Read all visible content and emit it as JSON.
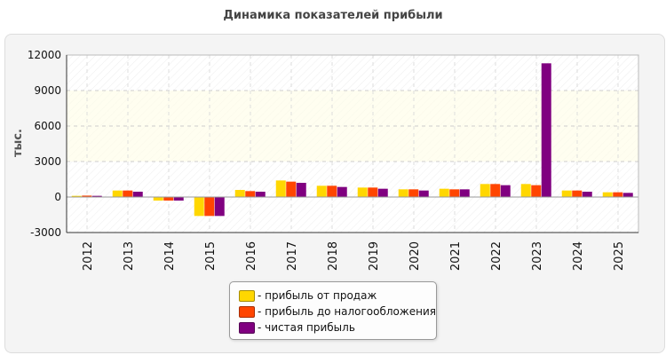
{
  "chart_data": {
    "type": "bar",
    "title": "Динамика показателей прибыли",
    "ylabel": "тыс.",
    "xlabel": "",
    "ylim": [
      -3000,
      12000
    ],
    "yticks": [
      "12000",
      "9000",
      "6000",
      "3000",
      "0",
      "-3000"
    ],
    "categories": [
      "2012",
      "2013",
      "2014",
      "2015",
      "2016",
      "2017",
      "2018",
      "2019",
      "2020",
      "2021",
      "2022",
      "2023",
      "2024",
      "2025"
    ],
    "series": [
      {
        "name": "- прибыль от продаж",
        "color": "#ffd700",
        "values": [
          100,
          550,
          -300,
          -1600,
          600,
          1400,
          950,
          800,
          650,
          700,
          1100,
          1100,
          550,
          400
        ]
      },
      {
        "name": "- прибыль до налогообложения",
        "color": "#ff4500",
        "values": [
          120,
          550,
          -300,
          -1600,
          500,
          1300,
          950,
          800,
          650,
          650,
          1100,
          1000,
          550,
          400
        ]
      },
      {
        "name": "- чистая прибыль",
        "color": "#800080",
        "values": [
          100,
          450,
          -300,
          -1600,
          450,
          1200,
          850,
          700,
          550,
          650,
          1000,
          11300,
          450,
          350
        ]
      }
    ],
    "grid": true,
    "legend_position": "bottom-center"
  }
}
